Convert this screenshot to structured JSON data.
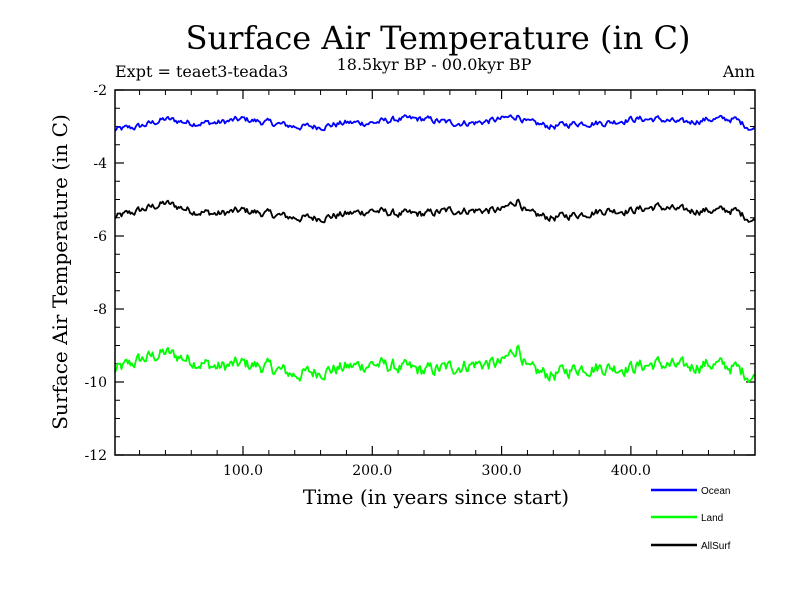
{
  "chart_data": {
    "type": "line",
    "title": "Surface Air Temperature (in C)",
    "subtitle": "18.5kyr BP - 00.0kyr BP",
    "experiment_label": "Expt = teaet3-teada3",
    "season_label": "Ann",
    "xlabel": "Time (in years since start)",
    "ylabel": "Surface Air Temperature (in C)",
    "xlim": [
      1,
      496
    ],
    "ylim": [
      -12,
      -2
    ],
    "x_ticks": [
      100,
      200,
      300,
      400
    ],
    "x_tick_labels": [
      "100.0",
      "200.0",
      "300.0",
      "400.0"
    ],
    "y_ticks": [
      -2,
      -4,
      -6,
      -8,
      -10,
      -12
    ],
    "y_tick_labels": [
      "-2",
      "-4",
      "-6",
      "-8",
      "-10",
      "-12"
    ],
    "legend_position": "bottom-right, below plot",
    "series": [
      {
        "name": "Ocean",
        "color": "#0000ff",
        "x": [
          1,
          20,
          40,
          60,
          80,
          100,
          120,
          140,
          160,
          180,
          200,
          220,
          240,
          260,
          280,
          300,
          313,
          320,
          340,
          360,
          380,
          400,
          420,
          440,
          460,
          480,
          496
        ],
        "values": [
          -3.1,
          -3.0,
          -2.8,
          -2.9,
          -2.9,
          -2.8,
          -2.9,
          -3.0,
          -3.0,
          -2.9,
          -2.9,
          -2.8,
          -2.8,
          -2.9,
          -2.9,
          -2.8,
          -2.7,
          -2.9,
          -3.0,
          -2.9,
          -2.9,
          -2.8,
          -2.8,
          -2.9,
          -2.8,
          -2.8,
          -3.1
        ]
      },
      {
        "name": "Land",
        "color": "#00ff00",
        "x": [
          1,
          20,
          40,
          60,
          80,
          100,
          120,
          140,
          160,
          180,
          200,
          220,
          240,
          260,
          280,
          300,
          313,
          320,
          340,
          360,
          380,
          400,
          420,
          440,
          460,
          480,
          496
        ],
        "values": [
          -9.7,
          -9.4,
          -9.2,
          -9.4,
          -9.6,
          -9.5,
          -9.6,
          -9.8,
          -9.7,
          -9.6,
          -9.5,
          -9.6,
          -9.7,
          -9.6,
          -9.5,
          -9.5,
          -9.0,
          -9.7,
          -9.8,
          -9.6,
          -9.6,
          -9.6,
          -9.5,
          -9.6,
          -9.5,
          -9.6,
          -9.9
        ]
      },
      {
        "name": "AllSurf",
        "color": "#000000",
        "x": [
          1,
          20,
          40,
          60,
          80,
          100,
          120,
          140,
          160,
          180,
          200,
          220,
          240,
          260,
          280,
          300,
          313,
          320,
          340,
          360,
          380,
          400,
          420,
          440,
          460,
          480,
          496
        ],
        "values": [
          -5.5,
          -5.3,
          -5.1,
          -5.3,
          -5.4,
          -5.3,
          -5.4,
          -5.5,
          -5.5,
          -5.4,
          -5.3,
          -5.4,
          -5.4,
          -5.3,
          -5.3,
          -5.3,
          -5.0,
          -5.4,
          -5.5,
          -5.4,
          -5.3,
          -5.3,
          -5.2,
          -5.3,
          -5.3,
          -5.3,
          -5.6
        ]
      }
    ]
  }
}
